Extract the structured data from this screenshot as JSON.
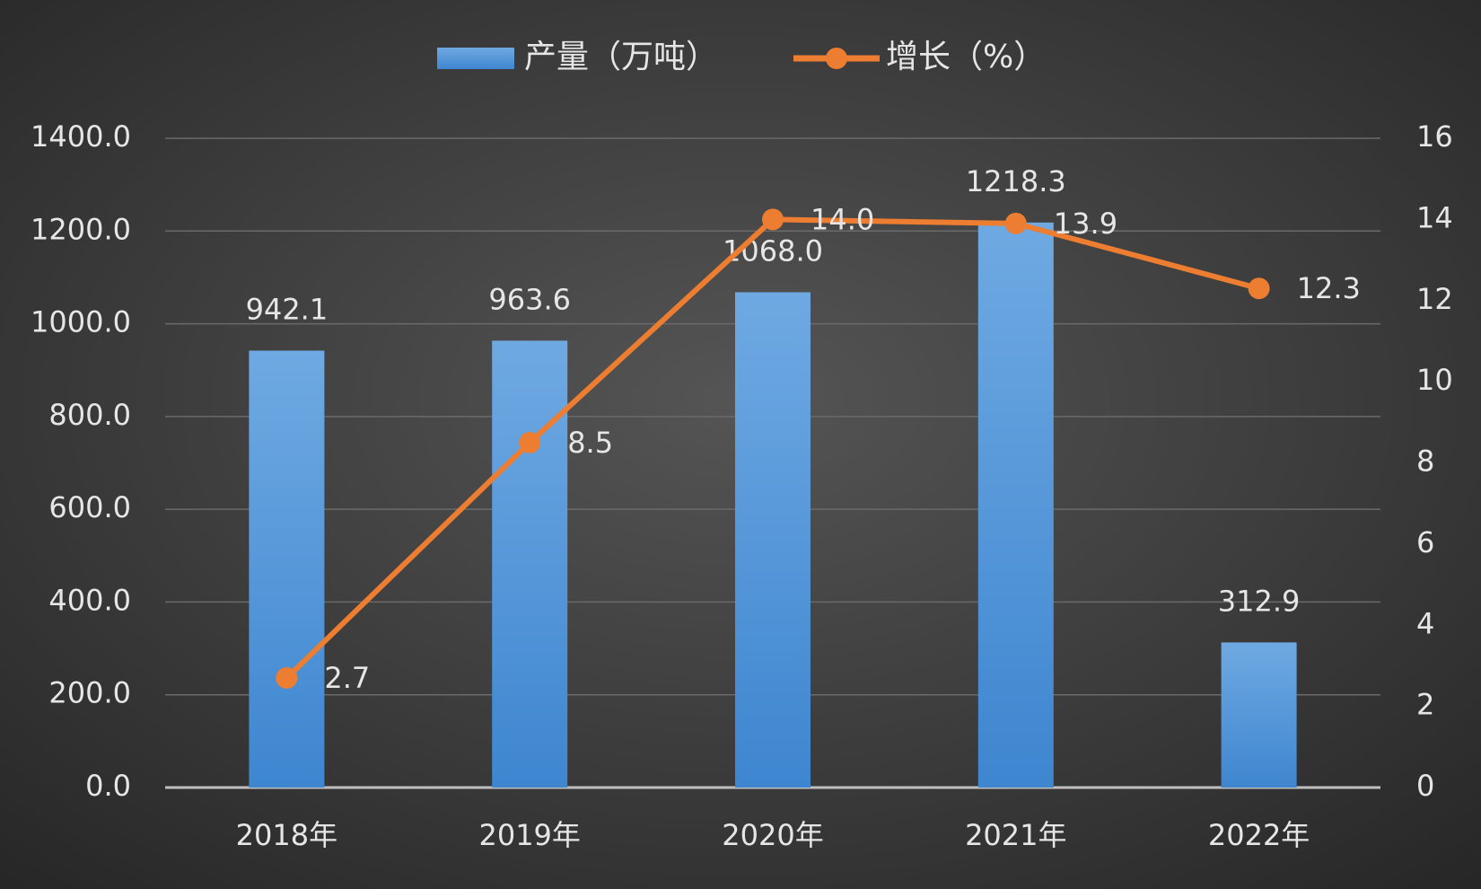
{
  "chart_data": {
    "type": "bar",
    "categories": [
      "2018年",
      "2019年",
      "2020年",
      "2021年",
      "2022年"
    ],
    "series": [
      {
        "name": "产量（万吨）",
        "type": "bar",
        "color": "#4a90d9",
        "values": [
          942.1,
          963.6,
          1068.0,
          1218.3,
          312.9
        ],
        "value_labels": [
          "942.1",
          "963.6",
          "1068.0",
          "1218.3",
          "312.9"
        ]
      },
      {
        "name": "增长（%）",
        "type": "line",
        "axis": "y2",
        "color": "#ed7d31",
        "values": [
          2.7,
          8.5,
          14.0,
          13.9,
          12.3
        ],
        "value_labels": [
          "2.7",
          "8.5",
          "14.0",
          "13.9",
          "12.3"
        ]
      }
    ],
    "ylim": [
      0,
      1400
    ],
    "yticks": [
      {
        "value": 0,
        "label": "0.0"
      },
      {
        "value": 200,
        "label": "200.0"
      },
      {
        "value": 400,
        "label": "400.0"
      },
      {
        "value": 600,
        "label": "600.0"
      },
      {
        "value": 800,
        "label": "800.0"
      },
      {
        "value": 1000,
        "label": "1000.0"
      },
      {
        "value": 1200,
        "label": "1200.0"
      },
      {
        "value": 1400,
        "label": "1400.0"
      }
    ],
    "y2lim": [
      0,
      16
    ],
    "y2ticks": [
      0,
      2,
      4,
      6,
      8,
      10,
      12,
      14,
      16
    ],
    "grid": true,
    "legend": "top"
  }
}
